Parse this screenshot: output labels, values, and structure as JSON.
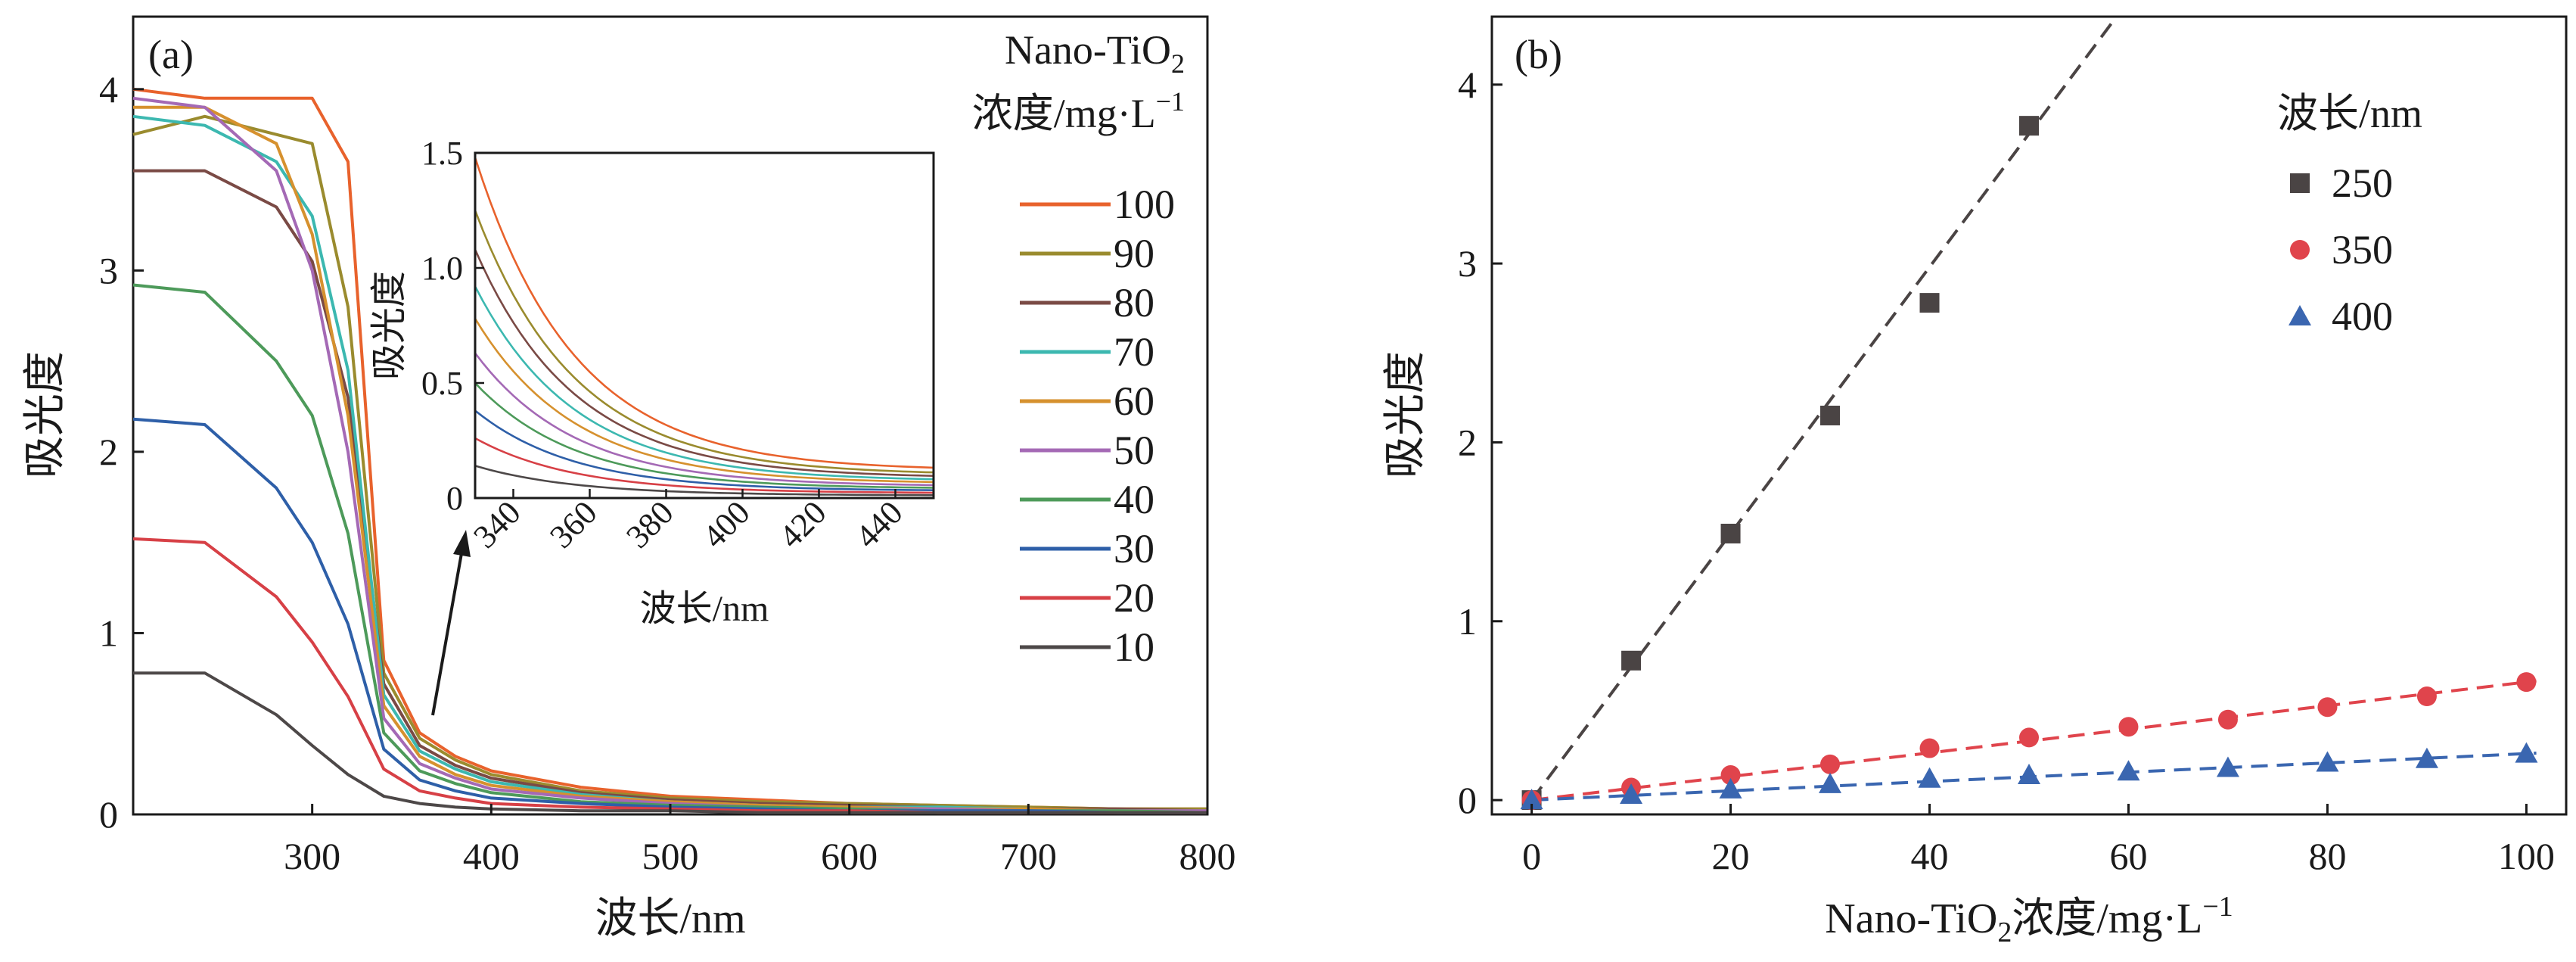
{
  "chart_data": [
    {
      "panel_label": "(a)",
      "type": "line",
      "xlabel": "波长/nm",
      "ylabel": "吸光度",
      "xlim": [
        200,
        800
      ],
      "ylim": [
        0,
        4.4
      ],
      "xticks": [
        300,
        400,
        500,
        600,
        700,
        800
      ],
      "yticks": [
        0,
        1,
        2,
        3,
        4
      ],
      "legend_title": [
        "Nano-TiO",
        "2",
        "浓度/mg·L",
        "−1"
      ],
      "legend_position": "right",
      "wavelengths": [
        200,
        240,
        280,
        300,
        320,
        340,
        360,
        380,
        400,
        450,
        500,
        550,
        600,
        650,
        700,
        750,
        800
      ],
      "series": [
        {
          "name": "100",
          "color": "#e8622c",
          "values": [
            4.0,
            3.95,
            3.95,
            3.95,
            3.6,
            0.85,
            0.45,
            0.32,
            0.24,
            0.15,
            0.1,
            0.08,
            0.06,
            0.05,
            0.04,
            0.03,
            0.03
          ]
        },
        {
          "name": "90",
          "color": "#9a8b2e",
          "values": [
            3.75,
            3.85,
            3.75,
            3.7,
            2.8,
            0.78,
            0.42,
            0.3,
            0.22,
            0.13,
            0.09,
            0.07,
            0.06,
            0.05,
            0.04,
            0.03,
            0.03
          ]
        },
        {
          "name": "80",
          "color": "#7a4a45",
          "values": [
            3.55,
            3.55,
            3.35,
            3.05,
            2.3,
            0.72,
            0.38,
            0.27,
            0.2,
            0.12,
            0.08,
            0.06,
            0.05,
            0.04,
            0.03,
            0.03,
            0.02
          ]
        },
        {
          "name": "70",
          "color": "#3cb8b0",
          "values": [
            3.85,
            3.8,
            3.6,
            3.3,
            2.45,
            0.66,
            0.35,
            0.25,
            0.18,
            0.11,
            0.07,
            0.05,
            0.04,
            0.04,
            0.03,
            0.02,
            0.02
          ]
        },
        {
          "name": "60",
          "color": "#d6912e",
          "values": [
            3.9,
            3.9,
            3.7,
            3.2,
            2.2,
            0.6,
            0.32,
            0.22,
            0.16,
            0.1,
            0.07,
            0.05,
            0.04,
            0.03,
            0.03,
            0.02,
            0.02
          ]
        },
        {
          "name": "50",
          "color": "#a469b5",
          "values": [
            3.95,
            3.9,
            3.55,
            3.0,
            2.0,
            0.53,
            0.28,
            0.2,
            0.14,
            0.09,
            0.06,
            0.04,
            0.03,
            0.03,
            0.02,
            0.02,
            0.02
          ]
        },
        {
          "name": "40",
          "color": "#4d9a5a",
          "values": [
            2.92,
            2.88,
            2.5,
            2.2,
            1.55,
            0.45,
            0.24,
            0.17,
            0.12,
            0.07,
            0.05,
            0.04,
            0.03,
            0.02,
            0.02,
            0.02,
            0.01
          ]
        },
        {
          "name": "30",
          "color": "#2e5fa8",
          "values": [
            2.18,
            2.15,
            1.8,
            1.5,
            1.05,
            0.36,
            0.19,
            0.13,
            0.09,
            0.06,
            0.04,
            0.03,
            0.02,
            0.02,
            0.02,
            0.01,
            0.01
          ]
        },
        {
          "name": "20",
          "color": "#d74046",
          "values": [
            1.52,
            1.5,
            1.2,
            0.95,
            0.65,
            0.25,
            0.13,
            0.09,
            0.06,
            0.04,
            0.03,
            0.02,
            0.02,
            0.01,
            0.01,
            0.01,
            0.01
          ]
        },
        {
          "name": "10",
          "color": "#4d4848",
          "values": [
            0.78,
            0.78,
            0.55,
            0.38,
            0.22,
            0.1,
            0.06,
            0.04,
            0.03,
            0.02,
            0.02,
            0.01,
            0.01,
            0.01,
            0.01,
            0.01,
            0.01
          ]
        }
      ],
      "inset": {
        "xlabel": "波长/nm",
        "ylabel": "吸光度",
        "xlim": [
          330,
          450
        ],
        "ylim": [
          0,
          1.5
        ],
        "xticks": [
          340,
          360,
          380,
          400,
          420,
          440
        ],
        "yticks": [
          0,
          0.5,
          1.0,
          1.5
        ],
        "ytick_labels": [
          "0",
          "0.5",
          "1.0",
          "1.5"
        ],
        "amplitudes": [
          1.48,
          1.25,
          1.08,
          0.92,
          0.78,
          0.63,
          0.5,
          0.38,
          0.26,
          0.14
        ]
      }
    },
    {
      "panel_label": "(b)",
      "type": "scatter",
      "xlabel": [
        "Nano-TiO",
        "2",
        "浓度/mg·L",
        "−1"
      ],
      "ylabel": "吸光度",
      "xlim": [
        -4,
        104
      ],
      "ylim": [
        -0.08,
        4.38
      ],
      "xticks": [
        0,
        20,
        40,
        60,
        80,
        100
      ],
      "yticks": [
        0,
        1,
        2,
        3,
        4
      ],
      "legend_title": "波长/nm",
      "legend_position": "top-right",
      "series": [
        {
          "name": "250",
          "color": "#4a4444",
          "marker": "square",
          "fit_slope": 0.0745,
          "x": [
            0,
            10,
            20,
            30,
            40,
            50
          ],
          "y": [
            0.0,
            0.78,
            1.49,
            2.15,
            2.78,
            3.77
          ]
        },
        {
          "name": "350",
          "color": "#e0444c",
          "marker": "circle",
          "fit_slope": 0.0066,
          "x": [
            0,
            10,
            20,
            30,
            40,
            50,
            60,
            70,
            80,
            90,
            100
          ],
          "y": [
            0.0,
            0.07,
            0.14,
            0.2,
            0.29,
            0.35,
            0.41,
            0.45,
            0.52,
            0.58,
            0.66
          ]
        },
        {
          "name": "400",
          "color": "#3a66b0",
          "marker": "triangle",
          "fit_slope": 0.0026,
          "x": [
            0,
            10,
            20,
            30,
            40,
            50,
            60,
            70,
            80,
            90,
            100
          ],
          "y": [
            0.0,
            0.03,
            0.06,
            0.09,
            0.12,
            0.14,
            0.16,
            0.18,
            0.21,
            0.23,
            0.26
          ]
        }
      ]
    }
  ]
}
